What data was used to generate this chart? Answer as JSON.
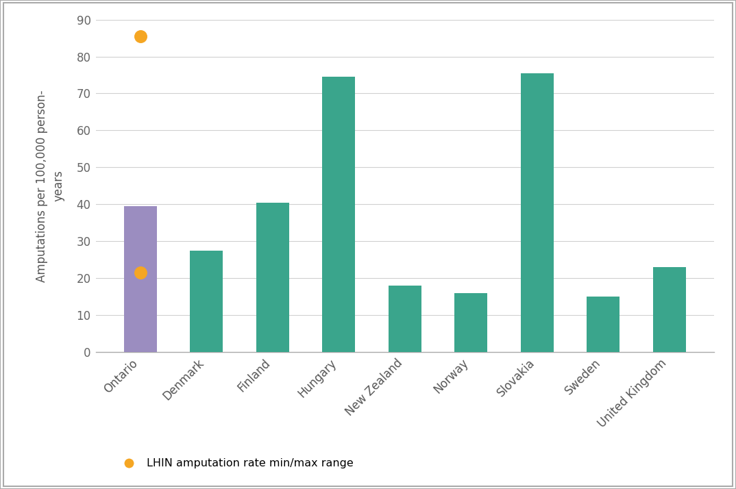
{
  "categories": [
    "Ontario",
    "Denmark",
    "Finland",
    "Hungary",
    "New Zealand",
    "Norway",
    "Slovakia",
    "Sweden",
    "United Kingdom"
  ],
  "values": [
    39.5,
    27.5,
    40.5,
    74.5,
    18.0,
    16.0,
    75.5,
    15.0,
    23.0
  ],
  "bar_colors": [
    "#9B8DC0",
    "#3AA58C",
    "#3AA58C",
    "#3AA58C",
    "#3AA58C",
    "#3AA58C",
    "#3AA58C",
    "#3AA58C",
    "#3AA58C"
  ],
  "ontario_dot_min": 21.5,
  "ontario_dot_max": 85.5,
  "dot_color": "#F5A623",
  "ylabel_line1": "Amputations per 100,000 person-",
  "ylabel_line2": "years",
  "ylim": [
    0,
    90
  ],
  "yticks": [
    0,
    10,
    20,
    30,
    40,
    50,
    60,
    70,
    80,
    90
  ],
  "legend_label": "LHIN amputation rate min/max range",
  "background_color": "#FFFFFF",
  "grid_color": "#D0D0D0",
  "bar_width": 0.5,
  "border_color": "#AAAAAA"
}
